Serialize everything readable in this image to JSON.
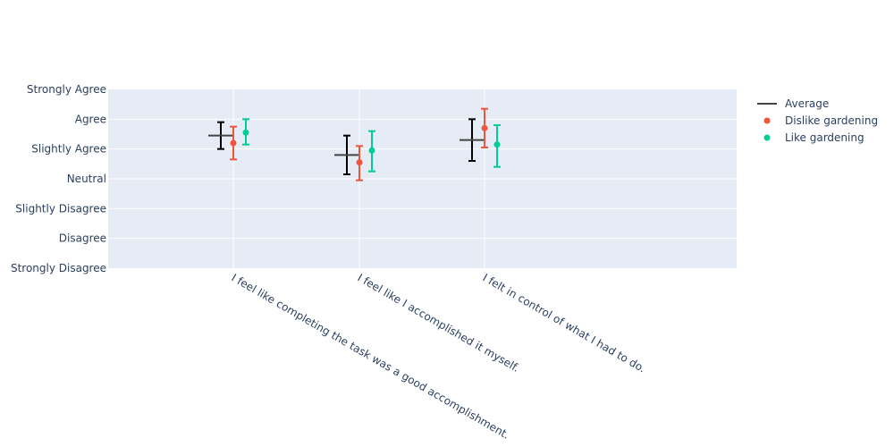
{
  "chart_data": {
    "type": "scatter",
    "categories": [
      "I feel like completing the task was a good accomplishment.",
      "I feel like I accomplished it myself.",
      "I felt in control of what I had to do."
    ],
    "y_tick_labels": [
      "Strongly Disagree",
      "Disagree",
      "Slightly Disagree",
      "Neutral",
      "Slightly Agree",
      "Agree",
      "Strongly Agree"
    ],
    "ylim": [
      1,
      7
    ],
    "grid": true,
    "legend_position": "top-right",
    "series": [
      {
        "name": "Average",
        "color": "#444444",
        "error_color": "#000000",
        "marker": "line",
        "values": [
          5.45,
          4.8,
          5.3
        ],
        "error_low": [
          5.0,
          4.15,
          4.6
        ],
        "error_high": [
          5.9,
          5.45,
          6.0
        ]
      },
      {
        "name": "Dislike gardening",
        "color": "#EF553B",
        "marker": "dot",
        "values": [
          5.2,
          4.55,
          5.7
        ],
        "error_low": [
          4.65,
          3.95,
          5.05
        ],
        "error_high": [
          5.75,
          5.1,
          6.35
        ]
      },
      {
        "name": "Like gardening",
        "color": "#00CC96",
        "marker": "dot",
        "values": [
          5.55,
          4.95,
          5.15
        ],
        "error_low": [
          5.15,
          4.25,
          4.4
        ],
        "error_high": [
          6.0,
          5.6,
          5.8
        ]
      }
    ]
  }
}
